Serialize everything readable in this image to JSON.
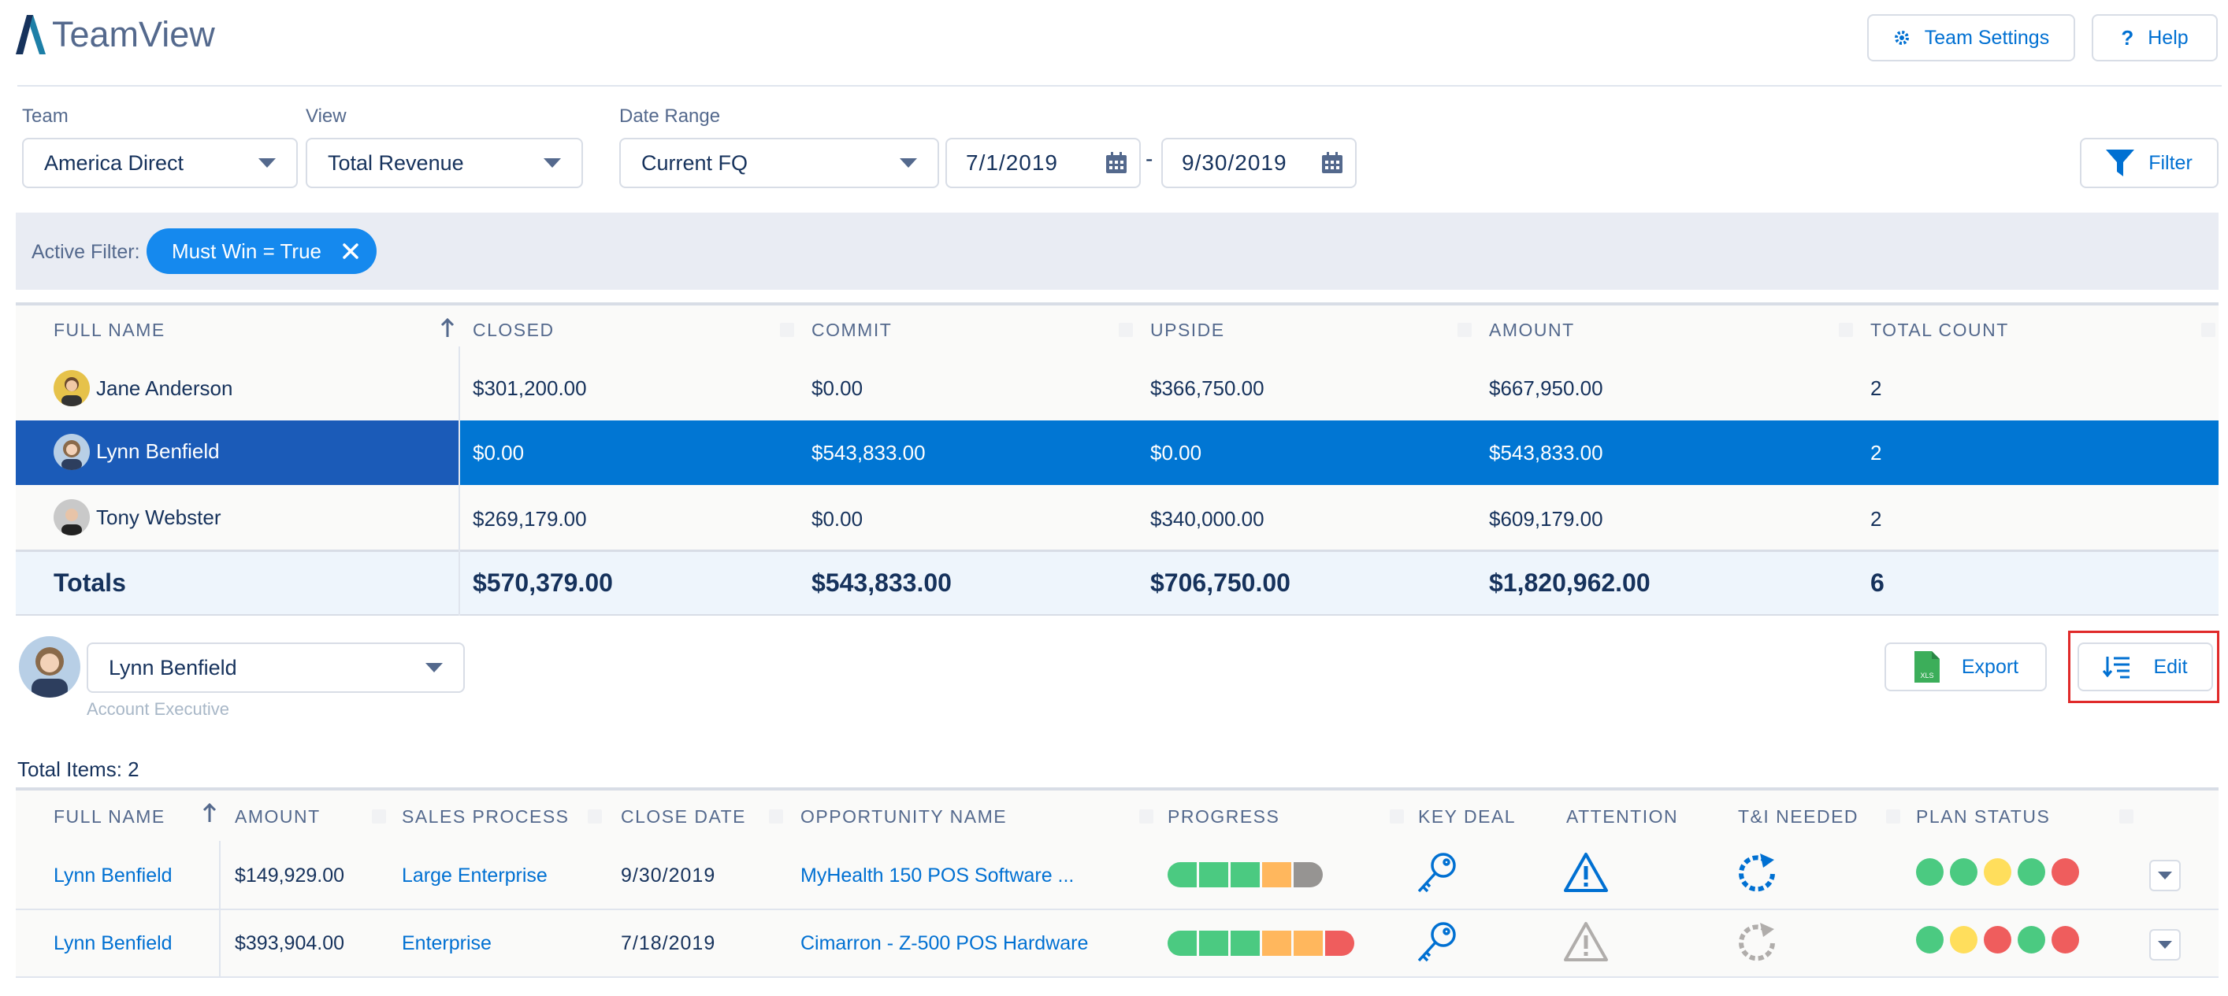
{
  "app": {
    "title": "TeamView"
  },
  "header": {
    "team_settings_label": "Team Settings",
    "help_label": "Help"
  },
  "filters": {
    "team": {
      "label": "Team",
      "value": "America Direct"
    },
    "view": {
      "label": "View",
      "value": "Total Revenue"
    },
    "date_range": {
      "label": "Date Range",
      "value": "Current FQ",
      "start": "7/1/2019",
      "separator": "-",
      "end": "9/30/2019"
    },
    "filter_button_label": "Filter"
  },
  "active_filter": {
    "label": "Active Filter:",
    "pill": "Must Win = True"
  },
  "summary_table": {
    "headers": [
      "FULL NAME",
      "CLOSED",
      "COMMIT",
      "UPSIDE",
      "AMOUNT",
      "TOTAL COUNT"
    ],
    "rows": [
      {
        "name": "Jane Anderson",
        "closed": "$301,200.00",
        "commit": "$0.00",
        "upside": "$366,750.00",
        "amount": "$667,950.00",
        "count": "2"
      },
      {
        "name": "Lynn Benfield",
        "closed": "$0.00",
        "commit": "$543,833.00",
        "upside": "$0.00",
        "amount": "$543,833.00",
        "count": "2"
      },
      {
        "name": "Tony Webster",
        "closed": "$269,179.00",
        "commit": "$0.00",
        "upside": "$340,000.00",
        "amount": "$609,179.00",
        "count": "2"
      }
    ],
    "totals": {
      "label": "Totals",
      "closed": "$570,379.00",
      "commit": "$543,833.00",
      "upside": "$706,750.00",
      "amount": "$1,820,962.00",
      "count": "6"
    }
  },
  "member": {
    "selected": "Lynn Benfield",
    "role": "Account Executive"
  },
  "actions": {
    "export_label": "Export",
    "edit_label": "Edit",
    "export_icon_text": "XLS"
  },
  "detail_table": {
    "total_items": "Total Items: 2",
    "headers": [
      "FULL NAME",
      "AMOUNT",
      "SALES PROCESS",
      "CLOSE DATE",
      "OPPORTUNITY NAME",
      "PROGRESS",
      "KEY DEAL",
      "ATTENTION",
      "T&I NEEDED",
      "PLAN STATUS"
    ],
    "rows": [
      {
        "name": "Lynn Benfield",
        "amount": "$149,929.00",
        "process": "Large Enterprise",
        "close_date": "9/30/2019",
        "opportunity": "MyHealth 150 POS Software ...",
        "progress": [
          "#4bca81",
          "#4bca81",
          "#4bca81",
          "#ffb75d",
          "#969492"
        ],
        "key_deal_icon": "key-icon",
        "attention_icon": "warning-icon",
        "attention_active": true,
        "tni_icon": "refresh-icon",
        "tni_active": true,
        "plan_status": [
          "#4bca81",
          "#4bca81",
          "#ffde5c",
          "#4bca81",
          "#ef5d5d"
        ]
      },
      {
        "name": "Lynn Benfield",
        "amount": "$393,904.00",
        "process": "Enterprise",
        "close_date": "7/18/2019",
        "opportunity": "Cimarron - Z-500 POS Hardware",
        "progress": [
          "#4bca81",
          "#4bca81",
          "#4bca81",
          "#ffb75d",
          "#ffb75d",
          "#ef5d5d"
        ],
        "key_deal_icon": "key-icon",
        "attention_icon": "warning-icon",
        "attention_active": false,
        "tni_icon": "refresh-icon",
        "tni_active": false,
        "plan_status": [
          "#4bca81",
          "#ffde5c",
          "#ef5d5d",
          "#4bca81",
          "#ef5d5d"
        ]
      }
    ]
  },
  "colors": {
    "accent": "#0070d2",
    "selected_row": "#0176d3",
    "selected_name_cell": "#1b5bb8",
    "totals_bg": "#eef5fc",
    "highlight_box": "#e02a2a"
  }
}
